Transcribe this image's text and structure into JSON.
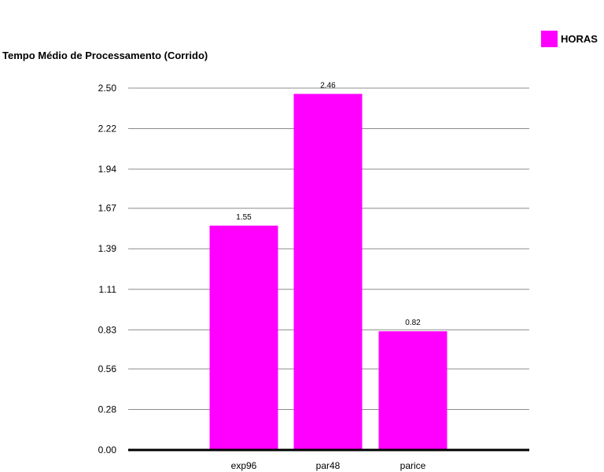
{
  "chart_data": {
    "type": "bar",
    "title": "Tempo Médio de Processamento (Corrido)",
    "xlabel": "",
    "ylabel": "",
    "categories": [
      "exp96",
      "par48",
      "parice"
    ],
    "series": [
      {
        "name": "HORAS",
        "values": [
          1.55,
          2.46,
          0.82
        ],
        "color": "#ff00ff"
      }
    ],
    "data_labels": [
      "1.55",
      "2.46",
      "0.82"
    ],
    "ylim": [
      0,
      2.5
    ],
    "yticks": [
      "0.00",
      "0.28",
      "0.56",
      "0.83",
      "1.11",
      "1.39",
      "1.67",
      "1.94",
      "2.22",
      "2.50"
    ],
    "grid": true,
    "legend_position": "top-right"
  }
}
